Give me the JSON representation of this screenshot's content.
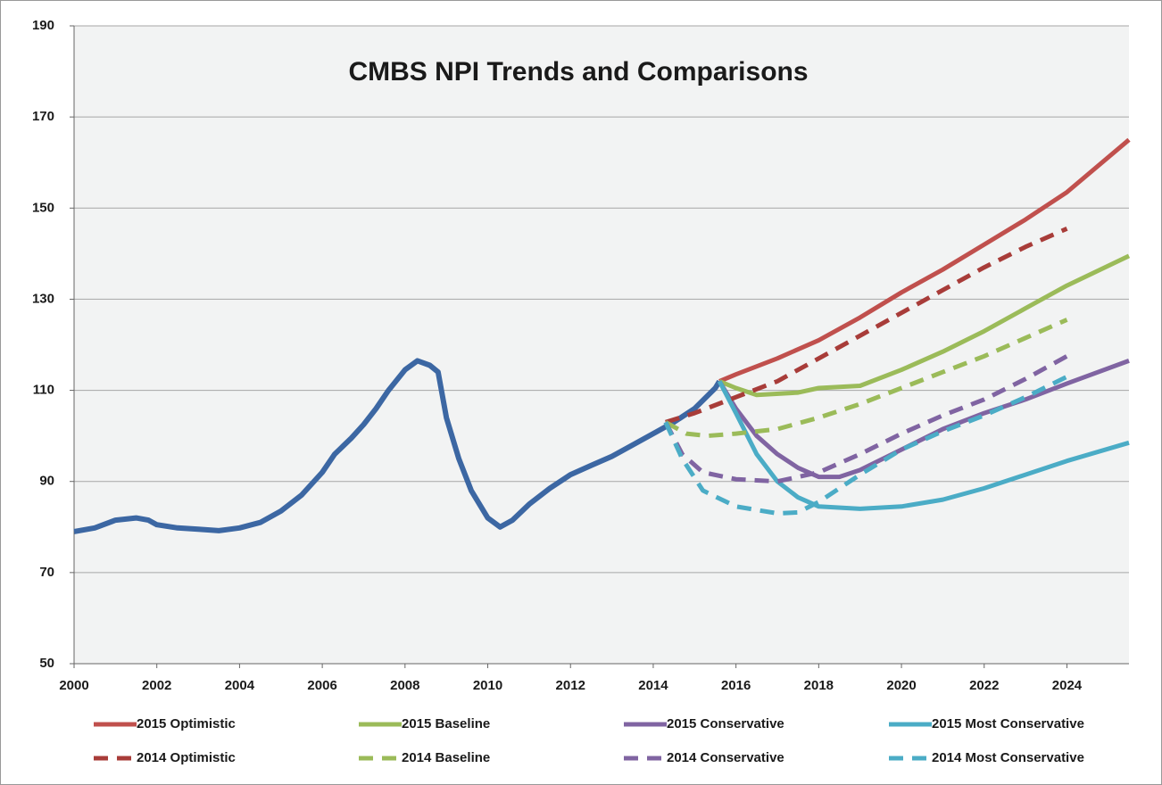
{
  "chart_data": {
    "type": "line",
    "title": "CMBS NPI Trends and Comparisons",
    "xlim": [
      2000,
      2025.5
    ],
    "xticks": [
      2000,
      2002,
      2004,
      2006,
      2008,
      2010,
      2012,
      2014,
      2016,
      2018,
      2020,
      2022,
      2024
    ],
    "ylim": [
      50,
      190
    ],
    "yticks": [
      50,
      70,
      90,
      110,
      130,
      150,
      170,
      190
    ],
    "grid": true,
    "legend": "bottom",
    "series": [
      {
        "color": "#3c67a3",
        "dash": false,
        "x": [
          2000,
          2000.5,
          2001,
          2001.5,
          2001.8,
          2002,
          2002.5,
          2003,
          2003.5,
          2004,
          2004.5,
          2005,
          2005.5,
          2006,
          2006.3,
          2006.7,
          2007,
          2007.3,
          2007.6,
          2008,
          2008.3,
          2008.6,
          2008.8,
          2009,
          2009.3,
          2009.6,
          2010,
          2010.3,
          2010.6,
          2011,
          2011.5,
          2012,
          2012.5,
          2013,
          2013.5,
          2014,
          2014.5,
          2015,
          2015.5,
          2015.6
        ],
        "values": [
          79,
          79.8,
          81.5,
          82,
          81.5,
          80.5,
          79.8,
          79.5,
          79.2,
          79.8,
          81,
          83.5,
          87,
          92,
          96,
          99.5,
          102.5,
          106,
          110,
          114.5,
          116.5,
          115.5,
          114,
          104,
          95,
          88,
          82,
          80,
          81.5,
          85,
          88.5,
          91.5,
          93.5,
          95.5,
          98,
          100.5,
          103,
          106,
          110.5,
          112
        ]
      },
      {
        "name": "2015 Optimistic",
        "color": "#c0504d",
        "dash": false,
        "x": [
          2015.6,
          2016,
          2017,
          2018,
          2019,
          2020,
          2021,
          2022,
          2023,
          2024,
          2025.5
        ],
        "values": [
          112,
          113.5,
          117,
          121,
          126,
          131.5,
          136.5,
          142,
          147.5,
          153.5,
          165
        ]
      },
      {
        "name": "2015 Baseline",
        "color": "#9bbb59",
        "dash": false,
        "x": [
          2015.6,
          2016,
          2016.5,
          2017.5,
          2018,
          2019,
          2020,
          2021,
          2022,
          2023,
          2024,
          2025.5
        ],
        "values": [
          112,
          110.5,
          109,
          109.5,
          110.5,
          111,
          114.5,
          118.5,
          123,
          128,
          133,
          139.5
        ]
      },
      {
        "name": "2015 Conservative",
        "color": "#8064a2",
        "dash": false,
        "x": [
          2015.6,
          2016,
          2016.5,
          2017,
          2017.5,
          2018,
          2018.5,
          2019,
          2020,
          2021,
          2022,
          2023,
          2024,
          2025.5
        ],
        "values": [
          112,
          106,
          100,
          96,
          93,
          91,
          91,
          92.5,
          97,
          101.5,
          105,
          108,
          111.5,
          116.5
        ]
      },
      {
        "name": "2015 Most Conservative",
        "color": "#4bacc6",
        "dash": false,
        "x": [
          2015.6,
          2016,
          2016.5,
          2017,
          2017.5,
          2018,
          2019,
          2020,
          2021,
          2022,
          2023,
          2024,
          2025.5
        ],
        "values": [
          112,
          105,
          96,
          90,
          86.5,
          84.5,
          84,
          84.5,
          86,
          88.5,
          91.5,
          94.5,
          98.5
        ]
      },
      {
        "name": "2014 Optimistic",
        "color": "#a83c39",
        "dash": true,
        "x": [
          2014.3,
          2015,
          2016,
          2017,
          2018,
          2019,
          2020,
          2021,
          2022,
          2023,
          2024
        ],
        "values": [
          103,
          105,
          108.5,
          112,
          117,
          122,
          127,
          132,
          137,
          141.5,
          145.5
        ]
      },
      {
        "name": "2014 Baseline",
        "color": "#9bbb59",
        "dash": true,
        "x": [
          2014.3,
          2014.8,
          2015.3,
          2016,
          2017,
          2018,
          2019,
          2020,
          2021,
          2022,
          2023,
          2024
        ],
        "values": [
          103,
          100.5,
          100,
          100.5,
          101.5,
          104,
          107,
          110.5,
          114,
          117.5,
          121.5,
          125.5
        ]
      },
      {
        "name": "2014 Conservative",
        "color": "#8064a2",
        "dash": true,
        "x": [
          2014.3,
          2014.7,
          2015.2,
          2016,
          2017,
          2018,
          2019,
          2020,
          2021,
          2022,
          2023,
          2024
        ],
        "values": [
          103,
          96,
          92,
          90.5,
          90,
          92,
          96,
          100.5,
          104.5,
          108,
          112.5,
          117.5
        ]
      },
      {
        "name": "2014 Most Conservative",
        "color": "#4bacc6",
        "dash": true,
        "x": [
          2014.3,
          2014.7,
          2015.2,
          2016,
          2017,
          2017.5,
          2018,
          2019,
          2020,
          2021,
          2022,
          2023,
          2024
        ],
        "values": [
          103,
          95,
          88,
          84.5,
          83,
          83.2,
          85.5,
          91.5,
          97,
          101,
          104.5,
          108.5,
          113
        ]
      }
    ]
  }
}
